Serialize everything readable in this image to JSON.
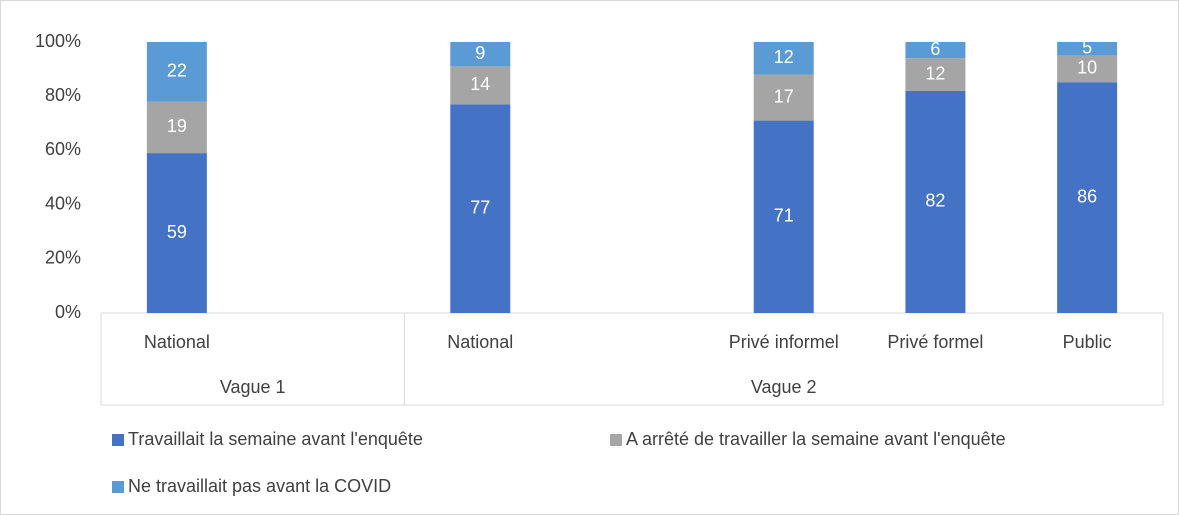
{
  "chart_data": {
    "type": "bar",
    "stacked": "percent",
    "categories": [
      "National",
      null,
      "National",
      null,
      "Privé informel",
      "Privé formel",
      "Public"
    ],
    "groups": [
      {
        "name": "Vague 1",
        "span": 2
      },
      {
        "name": "Vague 2",
        "span": 5
      }
    ],
    "series": [
      {
        "name": "Travaillait la semaine avant l'enquête",
        "color": "#4472c4",
        "values": [
          59,
          null,
          77,
          null,
          71,
          82,
          86
        ]
      },
      {
        "name": "A arrêté de travailler la semaine avant l'enquête",
        "color": "#a5a5a5",
        "values": [
          19,
          null,
          14,
          null,
          17,
          12,
          10
        ]
      },
      {
        "name": "Ne travaillait pas avant la COVID",
        "color": "#5b9bd5",
        "values": [
          22,
          null,
          9,
          null,
          12,
          6,
          5
        ]
      }
    ],
    "ylim": [
      0,
      100
    ],
    "yticks": [
      {
        "value": 0,
        "label": "0%"
      },
      {
        "value": 20,
        "label": "20%"
      },
      {
        "value": 40,
        "label": "40%"
      },
      {
        "value": 60,
        "label": "60%"
      },
      {
        "value": 80,
        "label": "80%"
      },
      {
        "value": 100,
        "label": "100%"
      }
    ],
    "grid": false,
    "legend": "bottom"
  }
}
